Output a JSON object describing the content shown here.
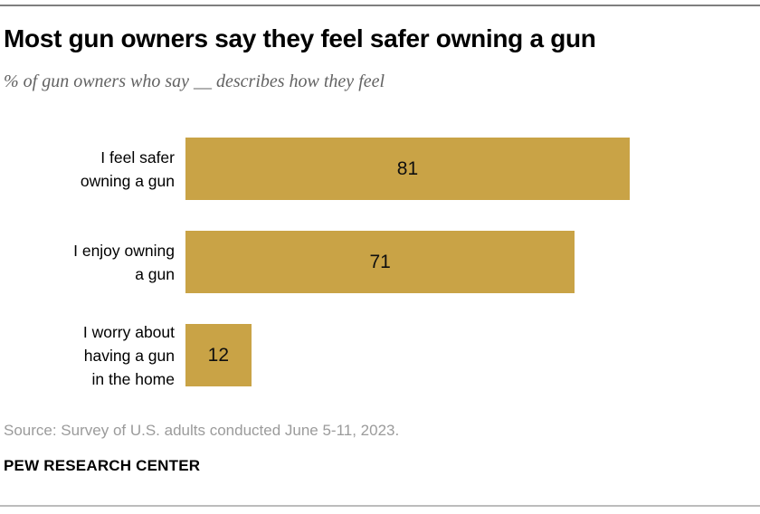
{
  "header": {
    "title": "Most gun owners say they feel safer owning a gun",
    "subtitle": "% of gun owners who say __ describes how they feel"
  },
  "chart_data": {
    "type": "bar",
    "orientation": "horizontal",
    "categories": [
      "I feel safer owning a gun",
      "I enjoy owning a gun",
      "I worry about having a gun in the home"
    ],
    "categories_display": [
      "I feel safer\nowning a gun",
      "I enjoy owning\na gun",
      "I worry about\nhaving a gun\nin the home"
    ],
    "values": [
      81,
      71,
      12
    ],
    "title": "Most gun owners say they feel safer owning a gun",
    "subtitle": "% of gun owners who say __ describes how they feel",
    "xlabel": "",
    "ylabel": "",
    "xlim": [
      0,
      100
    ],
    "grid": false,
    "legend": "none",
    "value_label_position": "inside-center"
  },
  "footer": {
    "source": "Source: Survey of U.S. adults conducted June 5-11, 2023.",
    "branding": "PEW RESEARCH CENTER"
  },
  "colors": {
    "bar_gold": "#C9A346",
    "title_text": "#000000",
    "subtitle_text": "#636363",
    "source_text": "#9B9B9B",
    "top_rule": "#7F7F7F",
    "bottom_rule": "#BCBCBC"
  }
}
